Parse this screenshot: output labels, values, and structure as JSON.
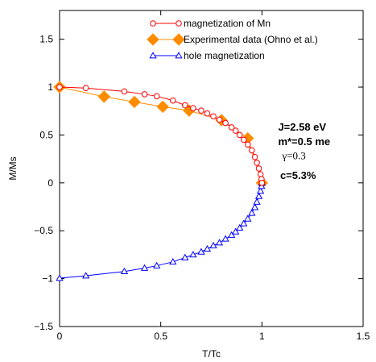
{
  "chart_data": {
    "type": "line",
    "title": "",
    "xlabel": "T/Tc",
    "ylabel": "M/Ms",
    "xlim": [
      0,
      1.5
    ],
    "ylim": [
      -1.5,
      1.8
    ],
    "xticks": [
      0,
      0.5,
      1,
      1.5
    ],
    "xtick_labels": [
      "0",
      "0.5",
      "1",
      "1.5"
    ],
    "yticks": [
      -1.5,
      -1,
      -0.5,
      0,
      0.5,
      1,
      1.5
    ],
    "ytick_labels": [
      "−1.5",
      "−1",
      "−0.5",
      "0",
      "0.5",
      "1",
      "1.5"
    ],
    "legend_position": "top-center",
    "series": [
      {
        "name": "magnetization of Mn",
        "color": "#ff0000",
        "marker": "open-circle",
        "line": true,
        "points": [
          [
            0.0,
            1.0
          ],
          [
            0.13,
            0.99
          ],
          [
            0.32,
            0.955
          ],
          [
            0.42,
            0.925
          ],
          [
            0.48,
            0.905
          ],
          [
            0.56,
            0.86
          ],
          [
            0.62,
            0.81
          ],
          [
            0.66,
            0.78
          ],
          [
            0.7,
            0.755
          ],
          [
            0.73,
            0.725
          ],
          [
            0.76,
            0.695
          ],
          [
            0.79,
            0.66
          ],
          [
            0.82,
            0.625
          ],
          [
            0.85,
            0.58
          ],
          [
            0.87,
            0.545
          ],
          [
            0.89,
            0.5
          ],
          [
            0.91,
            0.45
          ],
          [
            0.93,
            0.4
          ],
          [
            0.95,
            0.34
          ],
          [
            0.965,
            0.27
          ],
          [
            0.975,
            0.21
          ],
          [
            0.985,
            0.15
          ],
          [
            0.993,
            0.09
          ],
          [
            0.998,
            0.04
          ],
          [
            1.0,
            0.0
          ]
        ]
      },
      {
        "name": "Experimental data (Ohno et al.)",
        "color": "#ff8c00",
        "marker": "filled-diamond",
        "line": true,
        "points": [
          [
            0.0,
            1.0
          ],
          [
            0.22,
            0.9
          ],
          [
            0.37,
            0.845
          ],
          [
            0.51,
            0.795
          ],
          [
            0.64,
            0.755
          ],
          [
            0.8,
            0.655
          ],
          [
            0.93,
            0.465
          ],
          [
            1.0,
            0.0
          ]
        ]
      },
      {
        "name": "hole magnetization",
        "color": "#0000ff",
        "marker": "open-triangle",
        "line": true,
        "points": [
          [
            0.0,
            -0.995
          ],
          [
            0.13,
            -0.97
          ],
          [
            0.32,
            -0.925
          ],
          [
            0.42,
            -0.89
          ],
          [
            0.48,
            -0.865
          ],
          [
            0.56,
            -0.825
          ],
          [
            0.62,
            -0.78
          ],
          [
            0.66,
            -0.75
          ],
          [
            0.7,
            -0.72
          ],
          [
            0.73,
            -0.69
          ],
          [
            0.76,
            -0.655
          ],
          [
            0.79,
            -0.625
          ],
          [
            0.82,
            -0.585
          ],
          [
            0.85,
            -0.545
          ],
          [
            0.87,
            -0.51
          ],
          [
            0.89,
            -0.47
          ],
          [
            0.91,
            -0.425
          ],
          [
            0.93,
            -0.375
          ],
          [
            0.95,
            -0.315
          ],
          [
            0.965,
            -0.255
          ],
          [
            0.975,
            -0.2
          ],
          [
            0.985,
            -0.14
          ],
          [
            0.993,
            -0.085
          ],
          [
            0.998,
            -0.035
          ],
          [
            1.0,
            0.0
          ]
        ]
      }
    ],
    "annotations": [
      {
        "text": "J=2.58 eV",
        "style": "bold",
        "at": [
          1.08,
          0.545
        ]
      },
      {
        "text": "m*=0.5 me",
        "style": "bold",
        "at": [
          1.08,
          0.395
        ]
      },
      {
        "text": "γ=0.3",
        "style": "serif",
        "at": [
          1.1,
          0.245
        ]
      },
      {
        "text": "c=5.3%",
        "style": "bold",
        "at": [
          1.09,
          0.04
        ]
      }
    ]
  }
}
